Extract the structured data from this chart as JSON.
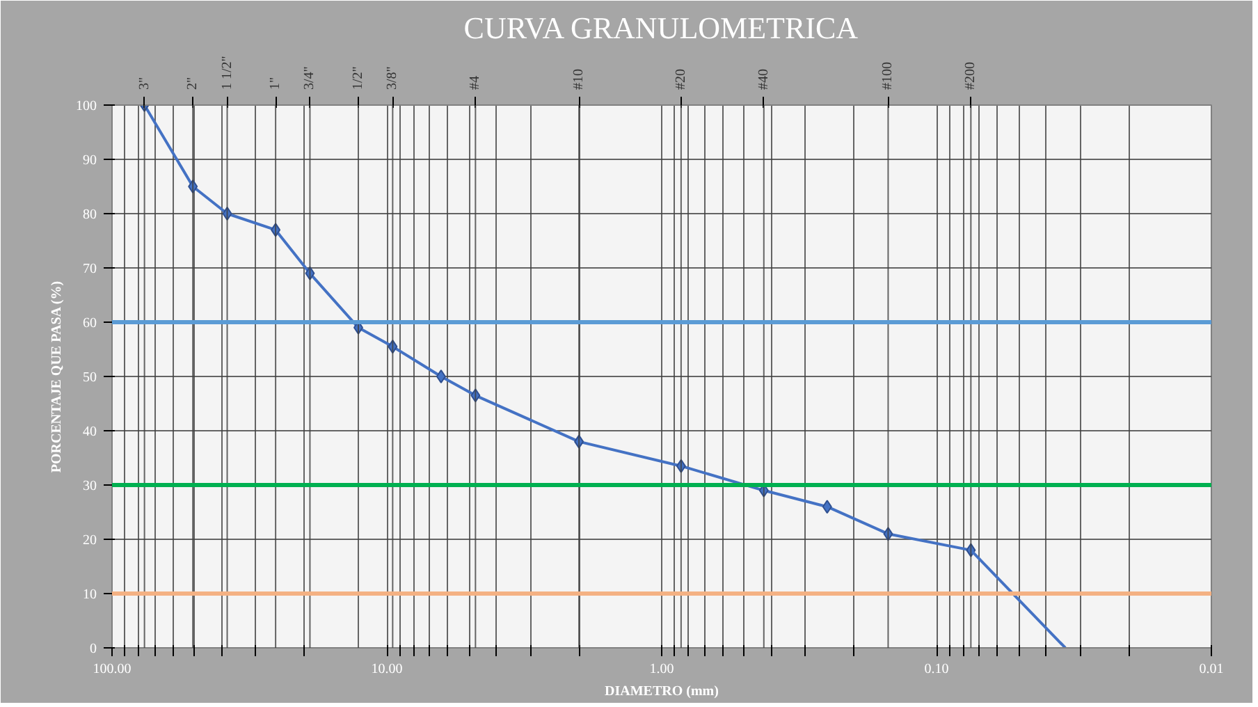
{
  "chart_data": {
    "type": "line",
    "title": "CURVA GRANULOMETRICA",
    "xlabel": "DIAMETRO (mm)",
    "ylabel": "PORCENTAJE QUE PASA (%)",
    "log": "x",
    "grid": true,
    "marker": "diamond",
    "line_style": "solid",
    "xlim": [
      100,
      0.01
    ],
    "ylim": [
      0,
      100
    ],
    "xticks": [
      {
        "value": 100,
        "label": "100.00"
      },
      {
        "value": 90,
        "label": null
      },
      {
        "value": 80,
        "label": null
      },
      {
        "value": 70,
        "label": null
      },
      {
        "value": 60,
        "label": null
      },
      {
        "value": 50,
        "label": null
      },
      {
        "value": 40,
        "label": null
      },
      {
        "value": 30,
        "label": null
      },
      {
        "value": 20,
        "label": null
      },
      {
        "value": 10,
        "label": "10.00"
      },
      {
        "value": 9,
        "label": null
      },
      {
        "value": 8,
        "label": null
      },
      {
        "value": 7,
        "label": null
      },
      {
        "value": 6,
        "label": null
      },
      {
        "value": 5,
        "label": null
      },
      {
        "value": 4,
        "label": null
      },
      {
        "value": 3,
        "label": null
      },
      {
        "value": 2,
        "label": null
      },
      {
        "value": 1,
        "label": "1.00"
      },
      {
        "value": 0.9,
        "label": null
      },
      {
        "value": 0.8,
        "label": null
      },
      {
        "value": 0.7,
        "label": null
      },
      {
        "value": 0.6,
        "label": null
      },
      {
        "value": 0.5,
        "label": null
      },
      {
        "value": 0.4,
        "label": null
      },
      {
        "value": 0.3,
        "label": null
      },
      {
        "value": 0.2,
        "label": null
      },
      {
        "value": 0.1,
        "label": "0.10"
      },
      {
        "value": 0.09,
        "label": null
      },
      {
        "value": 0.08,
        "label": null
      },
      {
        "value": 0.07,
        "label": null
      },
      {
        "value": 0.06,
        "label": null
      },
      {
        "value": 0.05,
        "label": null
      },
      {
        "value": 0.04,
        "label": null
      },
      {
        "value": 0.03,
        "label": null
      },
      {
        "value": 0.02,
        "label": null
      },
      {
        "value": 0.01,
        "label": "0.01"
      }
    ],
    "yticks": [
      0,
      10,
      20,
      30,
      40,
      50,
      60,
      70,
      80,
      90,
      100
    ],
    "annotations": [
      {
        "text": "3\"",
        "x": 76.2
      },
      {
        "text": "2\"",
        "x": 50.8
      },
      {
        "text": "1 1/2\"",
        "x": 38.1
      },
      {
        "text": "1\"",
        "x": 25.4
      },
      {
        "text": "3/4\"",
        "x": 19.05
      },
      {
        "text": "1/2\"",
        "x": 12.7
      },
      {
        "text": "3/8\"",
        "x": 9.525
      },
      {
        "text": "#4",
        "x": 4.76
      },
      {
        "text": "#10",
        "x": 2.0
      },
      {
        "text": "#20",
        "x": 0.85
      },
      {
        "text": "#40",
        "x": 0.425
      },
      {
        "text": "#100",
        "x": 0.15
      },
      {
        "text": "#200",
        "x": 0.075
      }
    ],
    "series": [
      {
        "color": "#4472c4",
        "x": [
          76.2,
          50.8,
          38.1,
          25.4,
          19.05,
          12.7,
          9.525,
          6.35,
          4.76,
          2.0,
          0.85,
          0.425,
          0.25,
          0.15,
          0.075
        ],
        "values": [
          100,
          85,
          80,
          77,
          69,
          59,
          55.5,
          50,
          46.5,
          38,
          33.5,
          29,
          26,
          21,
          18
        ]
      },
      {
        "color": "#4472c4",
        "marker": "none",
        "x": [
          0.075,
          0.034
        ],
        "values": [
          18,
          0
        ]
      }
    ],
    "ref_lines": [
      {
        "axis": "y",
        "value": 60,
        "color": "#5b9bd5"
      },
      {
        "axis": "y",
        "value": 30,
        "color": "#00b050"
      },
      {
        "axis": "y",
        "value": 10,
        "color": "#f4b183"
      }
    ]
  }
}
